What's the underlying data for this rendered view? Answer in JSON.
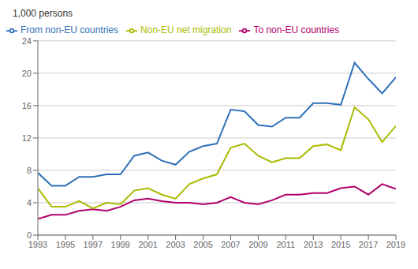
{
  "chart_data": {
    "type": "line",
    "ylabel": "1,000 persons",
    "x": [
      1993,
      1994,
      1995,
      1996,
      1997,
      1998,
      1999,
      2000,
      2001,
      2002,
      2003,
      2004,
      2005,
      2006,
      2007,
      2008,
      2009,
      2010,
      2011,
      2012,
      2013,
      2014,
      2015,
      2016,
      2017,
      2018,
      2019
    ],
    "series": [
      {
        "name": "From non-EU countries",
        "color": "#3070B8",
        "values": [
          7.7,
          6.1,
          6.1,
          7.2,
          7.2,
          7.5,
          7.5,
          9.8,
          10.2,
          9.2,
          8.7,
          10.3,
          11.0,
          11.3,
          15.5,
          15.3,
          13.6,
          13.4,
          14.5,
          14.5,
          16.3,
          16.3,
          16.1,
          21.3,
          19.3,
          17.5,
          19.5
        ]
      },
      {
        "name": "To non-EU countries",
        "color": "#B0006A",
        "values": [
          2.0,
          2.5,
          2.5,
          3.0,
          3.2,
          3.0,
          3.5,
          4.3,
          4.5,
          4.2,
          4.0,
          4.0,
          3.8,
          4.0,
          4.7,
          4.0,
          3.8,
          4.3,
          5.0,
          5.0,
          5.2,
          5.2,
          5.8,
          6.0,
          5.0,
          6.3,
          5.7
        ]
      },
      {
        "name": "Non-EU net migration",
        "color": "#AABB00",
        "values": [
          5.8,
          3.5,
          3.5,
          4.2,
          3.3,
          4.0,
          3.8,
          5.5,
          5.8,
          5.0,
          4.5,
          6.3,
          7.0,
          7.5,
          10.8,
          11.3,
          9.8,
          9.0,
          9.5,
          9.5,
          11.0,
          11.2,
          10.5,
          15.8,
          14.3,
          11.5,
          13.5
        ]
      }
    ],
    "xlim": [
      1993,
      2019
    ],
    "xticks": [
      1993,
      1995,
      1997,
      1999,
      2001,
      2003,
      2005,
      2007,
      2009,
      2011,
      2013,
      2015,
      2017,
      2019
    ],
    "ylim": [
      0,
      24
    ],
    "yticks": [
      0,
      4,
      8,
      12,
      16,
      20,
      24
    ],
    "grid": true,
    "legend": "upper left"
  }
}
